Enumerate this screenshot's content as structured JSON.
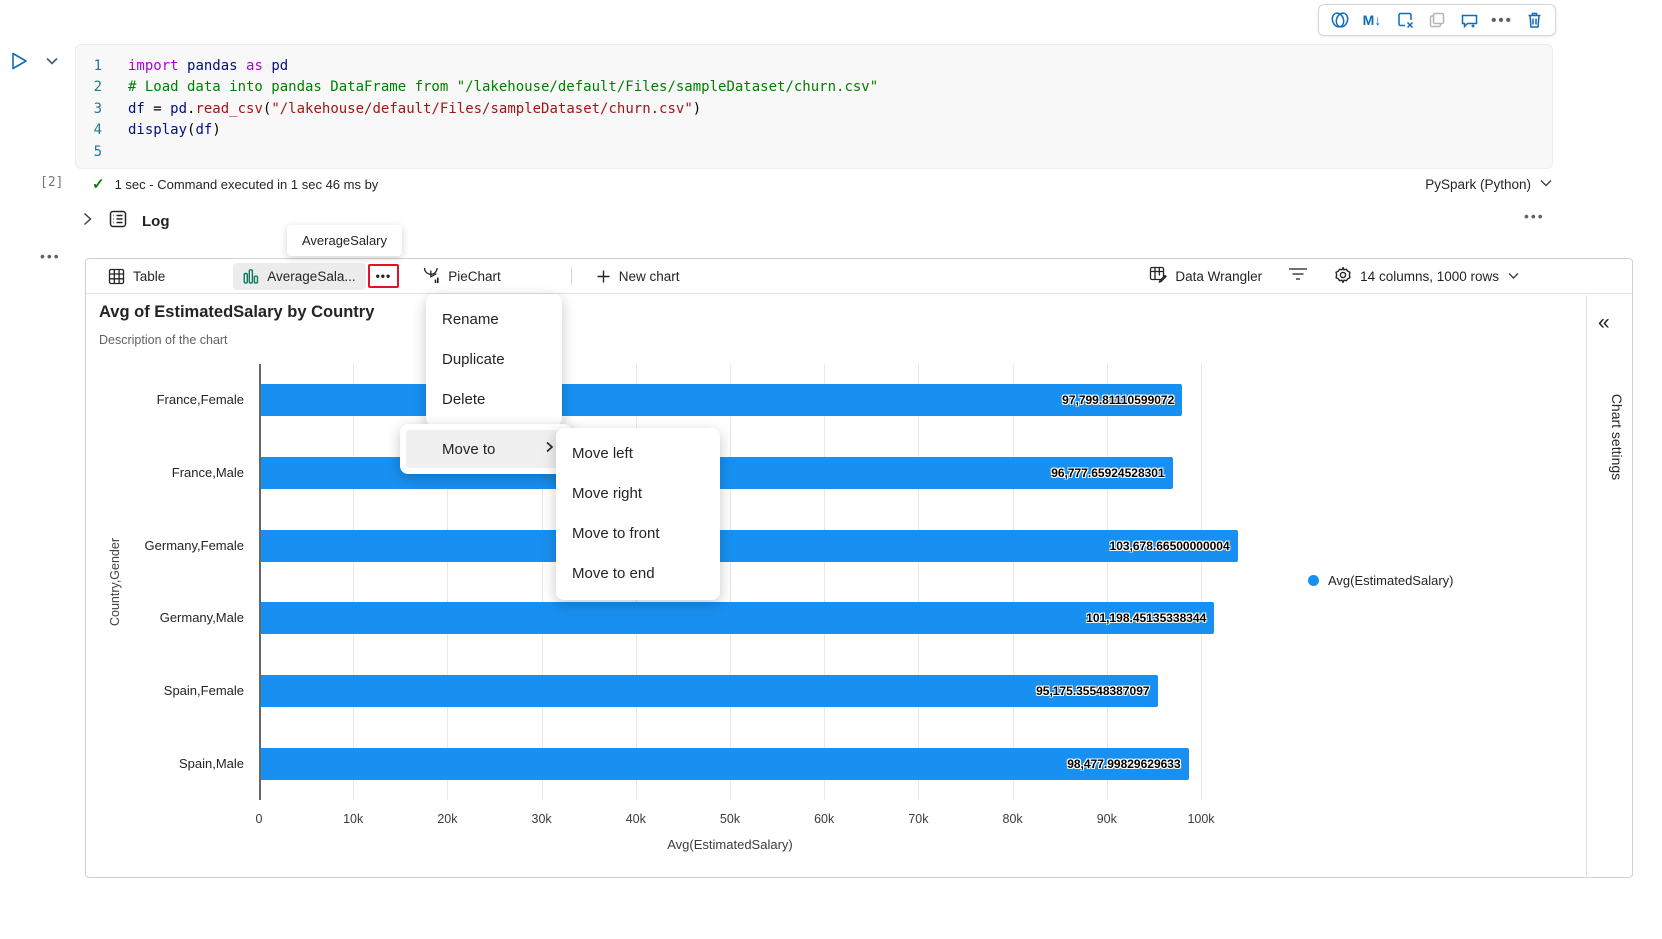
{
  "toolbar": {
    "icons": [
      "copilot-icon",
      "markdown-icon",
      "clear-cell-icon",
      "copy-icon",
      "comment-add-icon",
      "more-options-icon",
      "delete-cell-icon"
    ]
  },
  "code": {
    "lines": [
      {
        "num": "1",
        "tokens": [
          {
            "t": "import",
            "c": "kw"
          },
          {
            "t": " ",
            "c": "txt"
          },
          {
            "t": "pandas",
            "c": "id"
          },
          {
            "t": " ",
            "c": "txt"
          },
          {
            "t": "as",
            "c": "kw"
          },
          {
            "t": " ",
            "c": "txt"
          },
          {
            "t": "pd",
            "c": "id"
          }
        ]
      },
      {
        "num": "2",
        "tokens": [
          {
            "t": "# Load data into pandas DataFrame from \"/lakehouse/default/Files/sampleDataset/churn.csv\"",
            "c": "com"
          }
        ]
      },
      {
        "num": "3",
        "tokens": [
          {
            "t": "df",
            "c": "id"
          },
          {
            "t": " = ",
            "c": "txt"
          },
          {
            "t": "pd",
            "c": "id"
          },
          {
            "t": ".",
            "c": "txt"
          },
          {
            "t": "read_csv",
            "c": "fn"
          },
          {
            "t": "(",
            "c": "txt"
          },
          {
            "t": "\"/lakehouse/default/Files/sampleDataset/churn.csv\"",
            "c": "str"
          },
          {
            "t": ")",
            "c": "txt"
          }
        ]
      },
      {
        "num": "4",
        "tokens": [
          {
            "t": "display",
            "c": "id"
          },
          {
            "t": "(",
            "c": "txt"
          },
          {
            "t": "df",
            "c": "id"
          },
          {
            "t": ")",
            "c": "txt"
          }
        ]
      },
      {
        "num": "5",
        "tokens": []
      }
    ]
  },
  "status": {
    "execution_count": "[2]",
    "message": "1 sec - Command executed in 1 sec 46 ms by",
    "kernel": "PySpark (Python)"
  },
  "log": {
    "label": "Log"
  },
  "tooltip": {
    "text": "AverageSalary"
  },
  "tabs": {
    "table": "Table",
    "chart": "AverageSala...",
    "pie": "PieChart",
    "new_chart": "New chart",
    "data_wrangler": "Data Wrangler",
    "columns_info": "14 columns, 1000 rows"
  },
  "menu": {
    "items": [
      "Rename",
      "Duplicate",
      "Delete"
    ],
    "move_to": "Move to",
    "submenu": [
      "Move left",
      "Move right",
      "Move to front",
      "Move to end"
    ]
  },
  "chart_settings_label": "Chart settings",
  "chart_data": {
    "type": "bar",
    "orientation": "horizontal",
    "title": "Avg of EstimatedSalary by Country",
    "description": "Description of the chart",
    "categories": [
      "France,Female",
      "France,Male",
      "Germany,Female",
      "Germany,Male",
      "Spain,Female",
      "Spain,Male"
    ],
    "values": [
      97799.81110599072,
      96777.65924528301,
      103678.66500000004,
      101198.45135338344,
      95175.35548387097,
      98477.99829629633
    ],
    "value_labels": [
      "97,799.81110599072",
      "96,777.65924528301",
      "103,678.66500000004",
      "101,198.45135338344",
      "95,175.35548387097",
      "98,477.99829629633"
    ],
    "x_tick_values": [
      0,
      10000,
      20000,
      30000,
      40000,
      50000,
      60000,
      70000,
      80000,
      90000,
      100000
    ],
    "x_tick_labels": [
      "0",
      "10k",
      "20k",
      "30k",
      "40k",
      "50k",
      "60k",
      "70k",
      "80k",
      "90k",
      "100k"
    ],
    "xlim": [
      0,
      100000
    ],
    "xlabel": "Avg(EstimatedSalary)",
    "ylabel": "Country,Gender",
    "legend": [
      "Avg(EstimatedSalary)"
    ],
    "legend_position": "right",
    "grid": true,
    "bar_color": "#1890f1"
  }
}
